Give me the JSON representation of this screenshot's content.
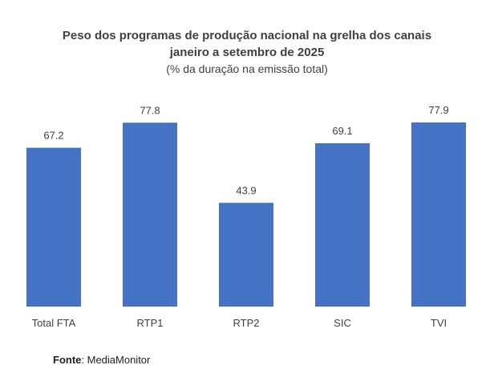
{
  "chart_data": {
    "type": "bar",
    "title_lines": [
      "Peso dos programas de produção nacional na grelha dos canais",
      "janeiro a setembro de 2025"
    ],
    "subtitle": "(% da duração na emissão total)",
    "categories": [
      "Total FTA",
      "RTP1",
      "RTP2",
      "SIC",
      "TVI"
    ],
    "values": [
      67.2,
      77.8,
      43.9,
      69.1,
      77.9
    ],
    "data_labels": [
      "67.2",
      "77.8",
      "43.9",
      "69.1",
      "77.9"
    ],
    "xlabel": "",
    "ylabel": "",
    "ylim": [
      0,
      77.9
    ],
    "grid": false,
    "legend": "none",
    "bar_color": "#4472C4"
  },
  "source": {
    "label": "Fonte",
    "text": ": MediaMonitor"
  }
}
